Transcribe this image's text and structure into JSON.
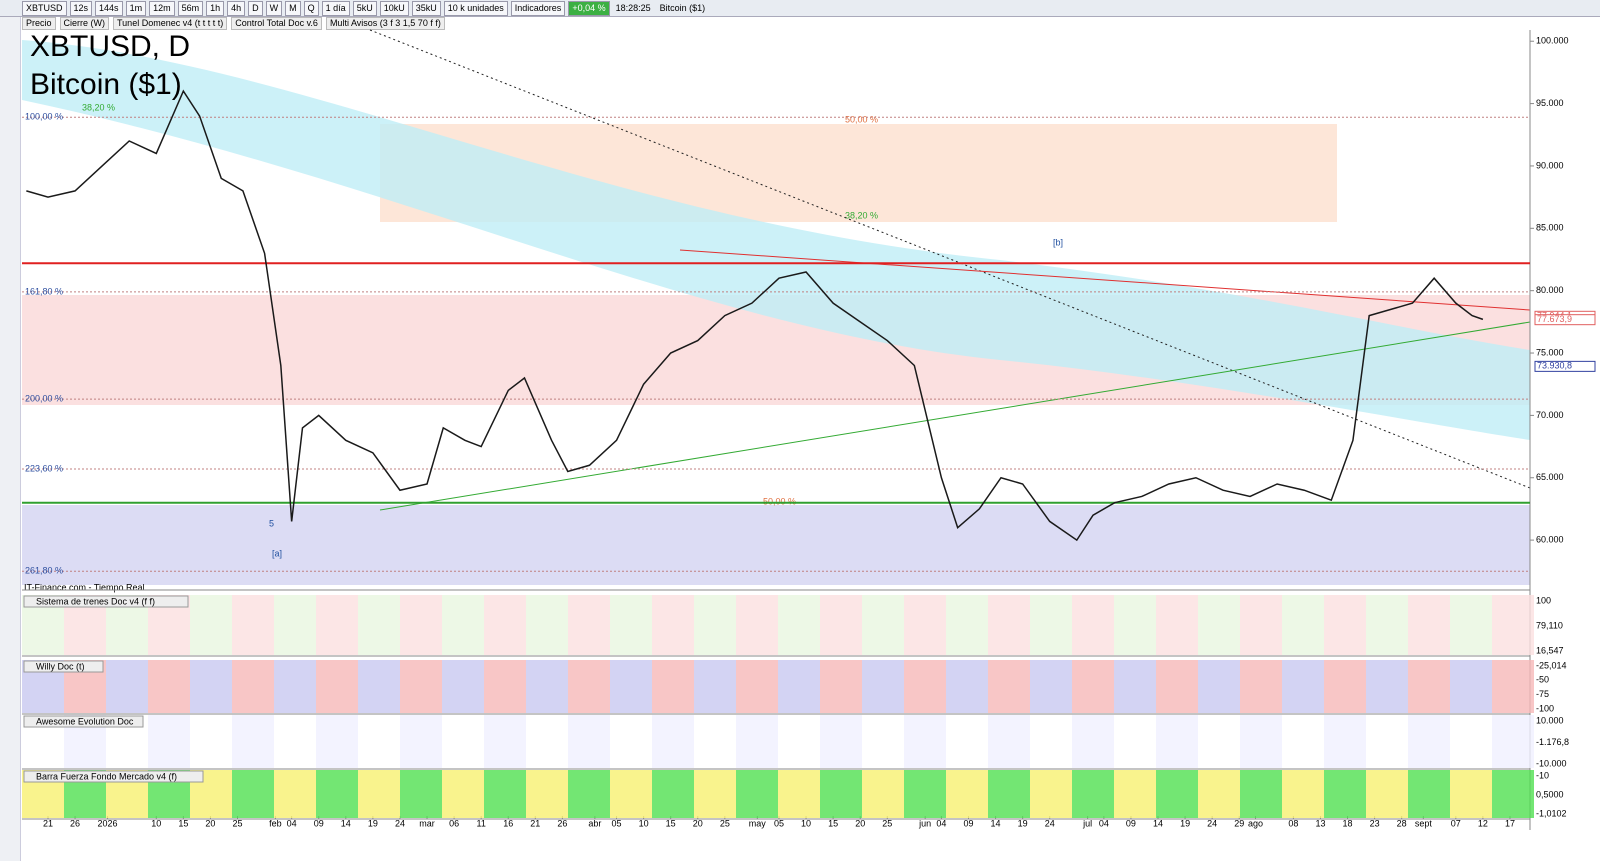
{
  "toolbar": {
    "symbol": "XBTUSD",
    "periods": [
      "12s",
      "144s",
      "1m",
      "12m",
      "56m",
      "1h",
      "4h",
      "D",
      "W",
      "M",
      "Q"
    ],
    "range": "1 día",
    "units": [
      "5kU",
      "10kU",
      "35kU"
    ],
    "unit_select": "10 k unidades",
    "indicators": "Indicadores",
    "change": "+0,04 %",
    "time": "18:28:25",
    "name": "Bitcoin ($1)"
  },
  "legend_row": [
    "Precio",
    "Cierre (W)",
    "Tunel Domenec v4 (t t t t t)",
    "Control Total Doc v.6",
    "Multi Avisos (3 f 3 1,5 70 f f)"
  ],
  "chart_data": {
    "type": "line",
    "title": "XBTUSD, D",
    "subtitle": "Bitcoin ($1)",
    "source": "IT-Finance.com - Tiempo Real",
    "color": "#1a1a1a",
    "x": [
      -4,
      0,
      5,
      10,
      15,
      20,
      25,
      28,
      32,
      36,
      40,
      43,
      45,
      47,
      50,
      55,
      60,
      65,
      70,
      73,
      77,
      80,
      85,
      88,
      90,
      93,
      96,
      100,
      105,
      110,
      115,
      120,
      125,
      130,
      135,
      140,
      145,
      150,
      155,
      160,
      165,
      168,
      172,
      176,
      180,
      185,
      190,
      193,
      197,
      202,
      207,
      212,
      217,
      222,
      227,
      232,
      237,
      241,
      244,
      248,
      252,
      256,
      260,
      263,
      265
    ],
    "values": [
      88,
      87.5,
      88,
      90,
      92,
      91,
      96,
      94,
      89,
      88,
      83,
      74,
      61.5,
      69,
      70,
      68,
      67,
      64,
      64.5,
      69,
      68,
      67.5,
      72,
      73,
      71,
      68,
      65.5,
      66,
      68,
      72.5,
      75,
      76,
      78,
      79,
      81,
      81.5,
      79,
      77.5,
      76,
      74,
      65,
      61,
      62.5,
      65,
      64.5,
      61.5,
      60,
      62,
      63,
      63.5,
      64.5,
      65,
      64,
      63.5,
      64.5,
      64,
      63.2,
      68,
      78,
      78.5,
      79,
      81,
      79,
      78,
      77.7
    ],
    "xlim": [
      -4.8,
      273.7
    ],
    "ylim": [
      56,
      100.9
    ],
    "xticks": [
      {
        "value": 0,
        "label": "21"
      },
      {
        "value": 5,
        "label": "26"
      },
      {
        "value": 11,
        "label": "2026"
      },
      {
        "value": 20,
        "label": "10"
      },
      {
        "value": 25,
        "label": "15"
      },
      {
        "value": 30,
        "label": "20"
      },
      {
        "value": 35,
        "label": "25"
      },
      {
        "value": 42,
        "label": "feb"
      },
      {
        "value": 45,
        "label": "04"
      },
      {
        "value": 50,
        "label": "09"
      },
      {
        "value": 55,
        "label": "14"
      },
      {
        "value": 60,
        "label": "19"
      },
      {
        "value": 65,
        "label": "24"
      },
      {
        "value": 70,
        "label": "mar"
      },
      {
        "value": 75,
        "label": "06"
      },
      {
        "value": 80,
        "label": "11"
      },
      {
        "value": 85,
        "label": "16"
      },
      {
        "value": 90,
        "label": "21"
      },
      {
        "value": 95,
        "label": "26"
      },
      {
        "value": 101,
        "label": "abr"
      },
      {
        "value": 105,
        "label": "05"
      },
      {
        "value": 110,
        "label": "10"
      },
      {
        "value": 115,
        "label": "15"
      },
      {
        "value": 120,
        "label": "20"
      },
      {
        "value": 125,
        "label": "25"
      },
      {
        "value": 131,
        "label": "may"
      },
      {
        "value": 135,
        "label": "05"
      },
      {
        "value": 140,
        "label": "10"
      },
      {
        "value": 145,
        "label": "15"
      },
      {
        "value": 150,
        "label": "20"
      },
      {
        "value": 155,
        "label": "25"
      },
      {
        "value": 162,
        "label": "jun"
      },
      {
        "value": 165,
        "label": "04"
      },
      {
        "value": 170,
        "label": "09"
      },
      {
        "value": 175,
        "label": "14"
      },
      {
        "value": 180,
        "label": "19"
      },
      {
        "value": 185,
        "label": "24"
      },
      {
        "value": 192,
        "label": "jul"
      },
      {
        "value": 195,
        "label": "04"
      },
      {
        "value": 200,
        "label": "09"
      },
      {
        "value": 205,
        "label": "14"
      },
      {
        "value": 210,
        "label": "19"
      },
      {
        "value": 215,
        "label": "24"
      },
      {
        "value": 220,
        "label": "29"
      },
      {
        "value": 223,
        "label": "ago"
      },
      {
        "value": 230,
        "label": "08"
      },
      {
        "value": 235,
        "label": "13"
      },
      {
        "value": 240,
        "label": "18"
      },
      {
        "value": 245,
        "label": "23"
      },
      {
        "value": 250,
        "label": "28"
      },
      {
        "value": 254,
        "label": "sept"
      },
      {
        "value": 260,
        "label": "07"
      },
      {
        "value": 265,
        "label": "12"
      },
      {
        "value": 270,
        "label": "17"
      }
    ],
    "yticks": [
      {
        "value": 100,
        "label": "100.000"
      },
      {
        "value": 95,
        "label": "95.000"
      },
      {
        "value": 90,
        "label": "90.000"
      },
      {
        "value": 85,
        "label": "85.000"
      },
      {
        "value": 80,
        "label": "80.000"
      },
      {
        "value": 75,
        "label": "75.000"
      },
      {
        "value": 70,
        "label": "70.000"
      },
      {
        "value": 65,
        "label": "65.000"
      },
      {
        "value": 60,
        "label": "60.000"
      }
    ],
    "levels": [
      {
        "value": 82.2,
        "color": "#e02020"
      },
      {
        "value": 63,
        "color": "#30a030"
      }
    ],
    "price_tags": [
      {
        "value": 77.9441,
        "label": "77.944,1",
        "color": "#e06060"
      },
      {
        "value": 77.6739,
        "label": "77.673,9",
        "color": "#e06060"
      },
      {
        "value": 73.9308,
        "label": "73.930,8",
        "color": "#3040a0"
      }
    ],
    "fib_labels": [
      {
        "value": 93.9,
        "label": "100,00 %"
      },
      {
        "value": 79.9,
        "label": "161,80 %"
      },
      {
        "value": 71.3,
        "label": "200,00 %"
      },
      {
        "value": 65.7,
        "label": "223,60 %"
      },
      {
        "value": 57.5,
        "label": "261,80 %"
      }
    ],
    "annotations": [
      "38,20 %",
      "50,00 %",
      "38,20 %",
      "50,00 %",
      "[b]",
      "[a]",
      "5"
    ]
  },
  "panels": [
    {
      "title": "Sistema de trenes Doc v4 (f f)",
      "labels": [
        "100",
        "79,110",
        "16,547"
      ]
    },
    {
      "title": "Willy Doc (t)",
      "labels": [
        "-25,014",
        "-50",
        "-75",
        "-100"
      ]
    },
    {
      "title": "Awesome Evolution Doc",
      "labels": [
        "10.000",
        "-1.176,8",
        "-10.000"
      ]
    },
    {
      "title": "Barra Fuerza Fondo Mercado v4 (f)",
      "labels": [
        "-10",
        "0,5000",
        "-1,0102"
      ]
    }
  ]
}
